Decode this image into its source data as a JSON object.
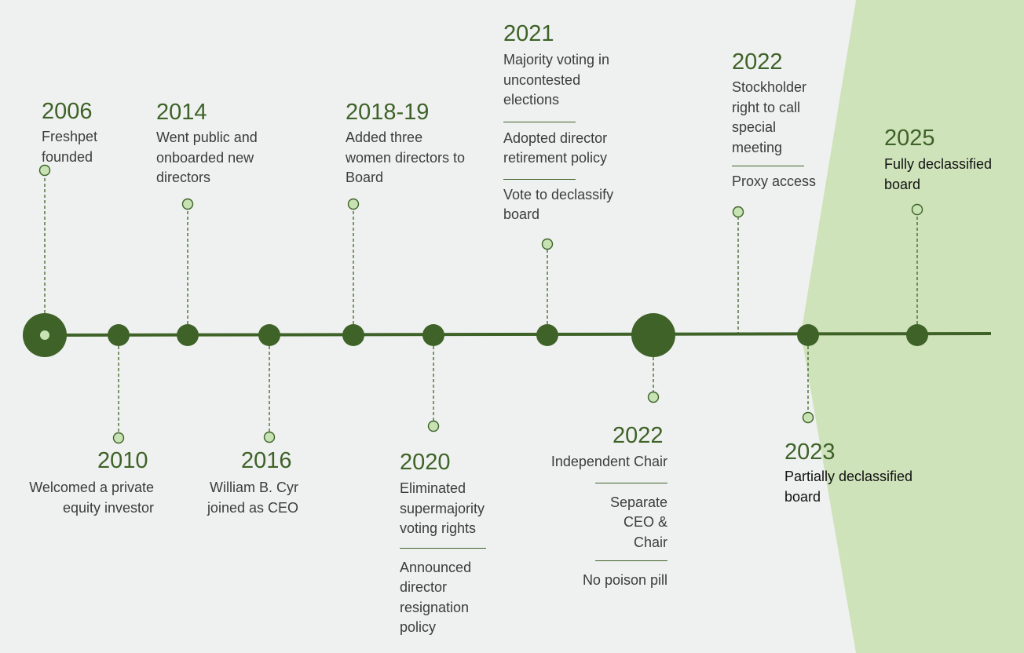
{
  "colors": {
    "background": "#eff1f0",
    "accent": "#3e6227",
    "light_marker": "#c7e2b3",
    "highlight_band": "#cfe3bb",
    "text": "#3c3c3c"
  },
  "milestones": [
    {
      "year": "2006",
      "items": [
        "Freshpet founded"
      ]
    },
    {
      "year": "2010",
      "items": [
        "Welcomed a private equity investor"
      ]
    },
    {
      "year": "2014",
      "items": [
        "Went public and onboarded new directors"
      ]
    },
    {
      "year": "2016",
      "items": [
        "William B. Cyr joined as CEO"
      ]
    },
    {
      "year": "2018-19",
      "items": [
        "Added three women directors to Board"
      ]
    },
    {
      "year": "2020",
      "items": [
        "Eliminated supermajority voting rights",
        "Announced director resignation policy"
      ]
    },
    {
      "year": "2021",
      "items": [
        "Majority voting in uncontested elections",
        "Adopted director retirement policy",
        "Vote to declassify board"
      ]
    },
    {
      "year": "2022",
      "items": [
        "Independent Chair",
        "Separate CEO & Chair",
        "No poison pill"
      ]
    },
    {
      "year": "2022",
      "items": [
        "Stockholder right to call special meeting",
        "Proxy access"
      ]
    },
    {
      "year": "2023",
      "items": [
        "Partially declassified board"
      ]
    },
    {
      "year": "2025",
      "items": [
        "Fully declassified board"
      ]
    }
  ]
}
